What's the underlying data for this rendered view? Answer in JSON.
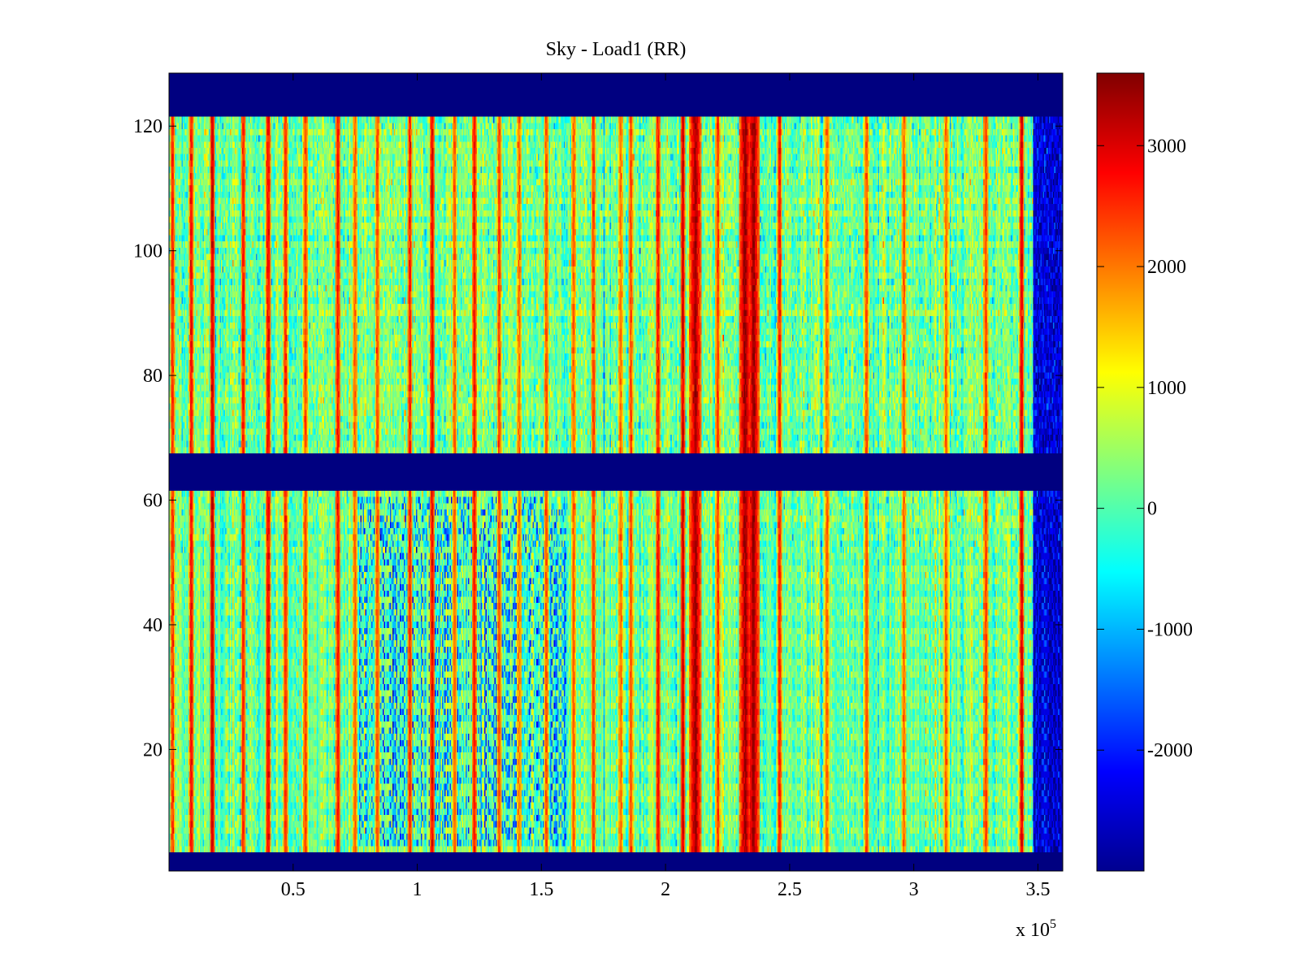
{
  "chart_data": {
    "type": "heatmap",
    "title": "Sky - Load1 (RR)",
    "xlabel": "",
    "ylabel": "",
    "x_range": [
      0,
      360000
    ],
    "y_range": [
      0.5,
      128.5
    ],
    "x_ticks": [
      {
        "value": 50000,
        "label": "0.5"
      },
      {
        "value": 100000,
        "label": "1"
      },
      {
        "value": 150000,
        "label": "1.5"
      },
      {
        "value": 200000,
        "label": "2"
      },
      {
        "value": 250000,
        "label": "2.5"
      },
      {
        "value": 300000,
        "label": "3"
      },
      {
        "value": 350000,
        "label": "3.5"
      }
    ],
    "x_exponent_label": {
      "base": "x 10",
      "exponent": "5"
    },
    "y_ticks": [
      {
        "value": 20,
        "label": "20"
      },
      {
        "value": 40,
        "label": "40"
      },
      {
        "value": 60,
        "label": "60"
      },
      {
        "value": 80,
        "label": "80"
      },
      {
        "value": 100,
        "label": "100"
      },
      {
        "value": 120,
        "label": "120"
      }
    ],
    "colormap": "jet",
    "color_range": [
      -3000,
      3600
    ],
    "colorbar_ticks": [
      {
        "value": 3000,
        "label": "3000"
      },
      {
        "value": 2000,
        "label": "2000"
      },
      {
        "value": 1000,
        "label": "1000"
      },
      {
        "value": 0,
        "label": "0"
      },
      {
        "value": -1000,
        "label": "-1000"
      },
      {
        "value": -2000,
        "label": "-2000"
      }
    ],
    "masked_row_ranges": [
      [
        0.5,
        3.5
      ],
      [
        61.5,
        67.5
      ],
      [
        121.5,
        128.5
      ]
    ],
    "masked_value": -3000,
    "base_level": 200,
    "hot_columns": [
      {
        "x": 1500,
        "value": 2800
      },
      {
        "x": 9000,
        "value": 3000
      },
      {
        "x": 17500,
        "value": 3400
      },
      {
        "x": 30000,
        "value": 2900
      },
      {
        "x": 40000,
        "value": 3100
      },
      {
        "x": 47000,
        "value": 2800
      },
      {
        "x": 55000,
        "value": 2600
      },
      {
        "x": 68000,
        "value": 3000
      },
      {
        "x": 75000,
        "value": 2400
      },
      {
        "x": 84000,
        "value": 2500
      },
      {
        "x": 97000,
        "value": 2900
      },
      {
        "x": 106000,
        "value": 3200
      },
      {
        "x": 115000,
        "value": 2400
      },
      {
        "x": 123000,
        "value": 3000
      },
      {
        "x": 133000,
        "value": 2600
      },
      {
        "x": 141000,
        "value": 2300
      },
      {
        "x": 152000,
        "value": 2500
      },
      {
        "x": 163000,
        "value": 2400
      },
      {
        "x": 171000,
        "value": 2600
      },
      {
        "x": 182000,
        "value": 2300
      },
      {
        "x": 186000,
        "value": 2600
      },
      {
        "x": 197000,
        "value": 3000
      },
      {
        "x": 207000,
        "value": 3400
      },
      {
        "x": 212000,
        "value": 3500
      },
      {
        "x": 221000,
        "value": 2600
      },
      {
        "x": 232000,
        "value": 3600
      },
      {
        "x": 235500,
        "value": 3600
      },
      {
        "x": 246000,
        "value": 2900
      },
      {
        "x": 265000,
        "value": 2300
      },
      {
        "x": 281000,
        "value": 2500
      },
      {
        "x": 296000,
        "value": 2400
      },
      {
        "x": 313000,
        "value": 2300
      },
      {
        "x": 329000,
        "value": 2600
      },
      {
        "x": 343500,
        "value": 3300
      }
    ],
    "cold_regions": [
      {
        "x_from": 348000,
        "x_to": 360000,
        "value": -2400
      },
      {
        "x_from": 75000,
        "x_to": 160000,
        "y_from": 5,
        "y_to": 60,
        "value": -1200
      }
    ]
  }
}
